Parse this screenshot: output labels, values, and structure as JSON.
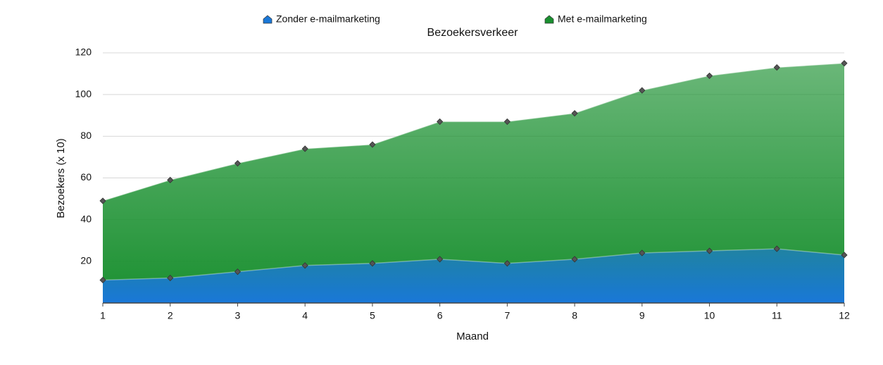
{
  "chart_data": {
    "type": "area",
    "title": "Bezoekersverkeer",
    "xlabel": "Maand",
    "ylabel": "Bezoekers (x 10)",
    "x": [
      1,
      2,
      3,
      4,
      5,
      6,
      7,
      8,
      9,
      10,
      11,
      12
    ],
    "series": [
      {
        "name": "Zonder e-mailmarketing",
        "color": "#1a78d8",
        "values": [
          11,
          12,
          15,
          18,
          19,
          21,
          19,
          21,
          24,
          25,
          26,
          23
        ]
      },
      {
        "name": "Met e-mailmarketing",
        "color": "#1a9030",
        "values": [
          49,
          59,
          67,
          74,
          76,
          87,
          87,
          91,
          102,
          109,
          113,
          115
        ]
      }
    ],
    "xlim": [
      1,
      12
    ],
    "xticks": [
      1,
      2,
      3,
      4,
      5,
      6,
      7,
      8,
      9,
      10,
      11,
      12
    ],
    "ylim": [
      0,
      120
    ],
    "yticks": [
      20,
      40,
      60,
      80,
      100,
      120
    ],
    "grid": true,
    "legend": "top"
  }
}
